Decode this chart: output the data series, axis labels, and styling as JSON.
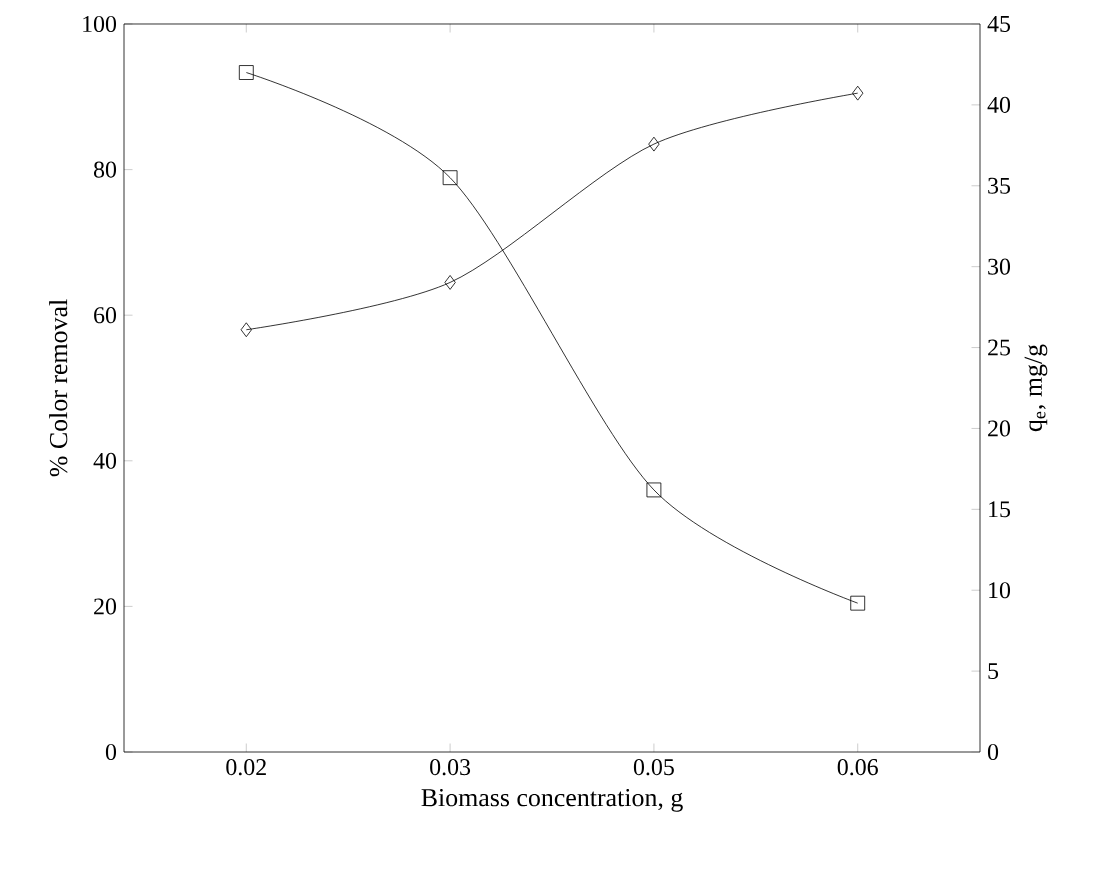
{
  "chart_data": {
    "type": "line",
    "xlabel": "Biomass concentration, g",
    "ylabel": "% Color removal",
    "y2label": "q$_{e}$, mg/g",
    "categories": [
      "0.02",
      "0.03",
      "0.05",
      "0.06"
    ],
    "series": [
      {
        "color": "#000000",
        "marker": "diamond",
        "values": [
          58,
          64.5,
          83.5,
          90.5
        ]
      },
      {
        "color": "#000000",
        "marker": "square",
        "axis": "y2",
        "values": [
          42,
          35.5,
          16.2,
          9.2
        ]
      }
    ],
    "ylim": [
      0,
      100
    ],
    "yticks": [
      0,
      20,
      40,
      60,
      80,
      100
    ],
    "y2lim": [
      0,
      45
    ],
    "y2ticks": [
      0,
      5,
      10,
      15,
      20,
      25,
      30,
      35,
      40,
      45
    ]
  }
}
